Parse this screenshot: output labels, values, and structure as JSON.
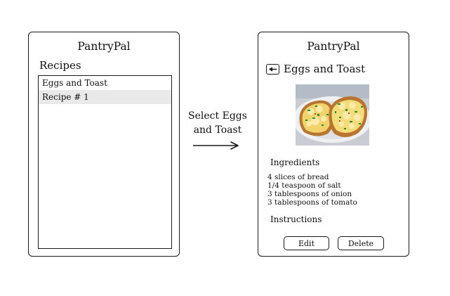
{
  "left_screen": {
    "app_title": "PantryPal",
    "section_title": "Recipes",
    "recipes": [
      {
        "label": "Eggs and Toast"
      },
      {
        "label": "Recipe # 1"
      }
    ]
  },
  "transition": {
    "line1": "Select Eggs",
    "line2": "and Toast"
  },
  "right_screen": {
    "app_title": "PantryPal",
    "recipe_title": "Eggs and Toast",
    "ingredients_label": "Ingredients",
    "ingredients": [
      "4 slices of bread",
      "1/4 teaspoon of salt",
      "3 tablespoons of onion",
      "3 tablespoons of tomato"
    ],
    "instructions_label": "Instructions",
    "edit_label": "Edit",
    "delete_label": "Delete"
  },
  "icons": {
    "back": "back-arrow-icon",
    "transition": "right-arrow-icon"
  },
  "colors": {
    "outline": "#1a1a1a",
    "selected_row": "#e9e9e9",
    "background": "#ffffff"
  }
}
